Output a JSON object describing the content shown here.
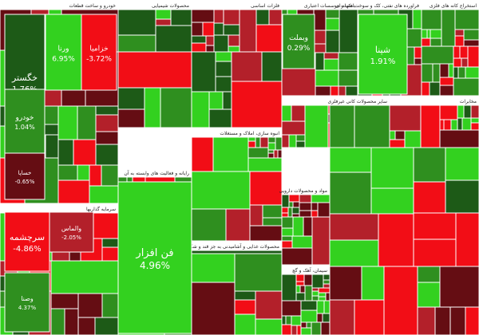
{
  "chart_data": {
    "type": "treemap",
    "title": "",
    "colors": {
      "positive_strong": "#33d11f",
      "positive": "#2f8f1f",
      "positive_dark": "#1d5a17",
      "negative": "#b3202a",
      "negative_strong": "#f20d16",
      "negative_dark": "#650d13",
      "header_bg": "#ffffff",
      "border": "#ffffff"
    },
    "sectors": [
      {
        "name": "خودرو و ساخت قطعات",
        "tiles": [
          {
            "name": "خگستر",
            "change": 1.76
          },
          {
            "name": "ورنا",
            "change": 6.95
          },
          {
            "name": "خزامیا",
            "change": -3.72
          },
          {
            "name": "خودرو",
            "change": 1.04
          },
          {
            "name": "خساپا",
            "change": -0.65
          }
        ]
      },
      {
        "name": "محصولات شیمیایی",
        "tiles": []
      },
      {
        "name": "فلزات اساسی",
        "tiles": []
      },
      {
        "name": "بانکها و موسسات اعتباری",
        "tiles": [
          {
            "name": "وبملت",
            "change": 0.29
          }
        ]
      },
      {
        "name": "فراورده های نفتی، کک و سوخت هسته ای",
        "tiles": [
          {
            "name": "شپنا",
            "change": 1.91
          }
        ]
      },
      {
        "name": "استخراج کانه های فلزی",
        "tiles": []
      },
      {
        "name": "سایر محصولات کانی غیرفلزی",
        "tiles": []
      },
      {
        "name": "انبوه سازی، املاک و مستغلات",
        "tiles": []
      },
      {
        "name": "رایانه و فعالیت های وابسته به آن",
        "tiles": [
          {
            "name": "فن افزار",
            "change": 4.96
          }
        ]
      },
      {
        "name": "سیمان، آهک و گچ",
        "tiles": []
      },
      {
        "name": "مواد و محصولات دارویی",
        "tiles": []
      },
      {
        "name": "محصولات غذایی و آشامیدنی به جز قند و شکر",
        "tiles": []
      },
      {
        "name": "مخابرات",
        "tiles": []
      },
      {
        "name": "سرمایه گذاریها",
        "tiles": [
          {
            "name": "سرچشمه",
            "change": -4.86
          },
          {
            "name": "والماس",
            "change": -2.05
          },
          {
            "name": "وصنا",
            "change": 4.37
          }
        ]
      }
    ]
  }
}
